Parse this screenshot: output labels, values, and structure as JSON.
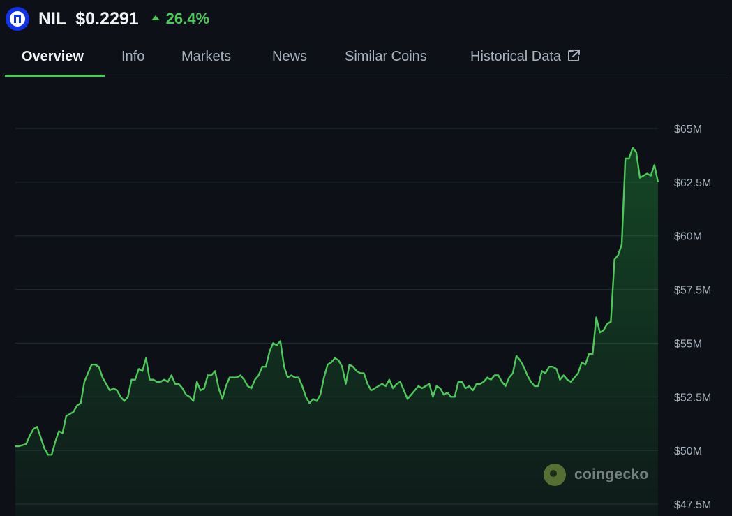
{
  "coin": {
    "symbol": "NIL",
    "price": "$0.2291",
    "change": "26.4%",
    "change_direction": "up",
    "logo_icon": "nil-logo-icon",
    "accent_color": "#4cc95a",
    "logo_color": "#1133e8"
  },
  "tabs": [
    {
      "label": "Overview",
      "active": true
    },
    {
      "label": "Info"
    },
    {
      "label": "Markets"
    },
    {
      "label": "News"
    },
    {
      "label": "Similar Coins"
    },
    {
      "label": "Historical Data",
      "icon": "external-link-icon"
    }
  ],
  "watermark": {
    "text": "coingecko",
    "icon": "coingecko-logo-icon"
  },
  "chart_data": {
    "type": "area",
    "y_tick_labels": [
      "$65M",
      "$62.5M",
      "$60M",
      "$57.5M",
      "$55M",
      "$52.5M",
      "$50M",
      "$47.5M"
    ],
    "y_ticks": [
      65,
      62.5,
      60,
      57.5,
      55,
      52.5,
      50,
      47.5
    ],
    "ylim": [
      47.5,
      65
    ],
    "y_unit": "millions USD",
    "grid": true,
    "legend": "none",
    "line_color": "#4cc95a",
    "series": [
      {
        "values": [
          50.2,
          50.2,
          50.25,
          50.3,
          50.7,
          51.0,
          51.1,
          50.6,
          50.1,
          49.8,
          49.8,
          50.4,
          50.9,
          50.8,
          51.6,
          51.7,
          51.8,
          52.1,
          52.2,
          53.2,
          53.6,
          54.0,
          54.0,
          53.9,
          53.4,
          53.1,
          52.8,
          52.9,
          52.8,
          52.5,
          52.3,
          52.5,
          53.3,
          53.3,
          53.8,
          53.7,
          54.3,
          53.3,
          53.3,
          53.2,
          53.2,
          53.3,
          53.2,
          53.5,
          53.1,
          53.1,
          52.9,
          52.6,
          52.5,
          52.3,
          53.2,
          52.8,
          52.9,
          53.5,
          53.5,
          53.7,
          52.9,
          52.4,
          53.0,
          53.4,
          53.4,
          53.4,
          53.5,
          53.3,
          53.0,
          52.9,
          53.3,
          53.5,
          53.9,
          53.9,
          54.6,
          55.0,
          54.9,
          55.1,
          53.9,
          53.4,
          53.5,
          53.4,
          53.4,
          53.0,
          52.5,
          52.2,
          52.4,
          52.3,
          52.6,
          53.4,
          54.0,
          54.1,
          54.3,
          54.2,
          53.9,
          53.1,
          54.0,
          53.9,
          53.7,
          53.6,
          53.6,
          53.1,
          52.8,
          52.9,
          53.0,
          53.1,
          53.0,
          53.3,
          52.9,
          53.1,
          53.2,
          52.8,
          52.4,
          52.6,
          52.8,
          53.0,
          52.9,
          53.0,
          53.1,
          52.5,
          53.0,
          52.9,
          52.6,
          52.7,
          52.5,
          52.5,
          53.2,
          53.2,
          52.9,
          53.0,
          52.8,
          53.1,
          53.1,
          53.2,
          53.4,
          53.3,
          53.5,
          53.5,
          53.2,
          53.0,
          53.4,
          53.6,
          54.4,
          54.2,
          53.9,
          53.5,
          53.2,
          53.0,
          53.0,
          53.7,
          53.6,
          53.9,
          53.9,
          53.8,
          53.3,
          53.5,
          53.3,
          53.2,
          53.4,
          53.6,
          54.1,
          54.0,
          54.5,
          54.5,
          56.2,
          55.5,
          55.6,
          55.9,
          56.0,
          58.9,
          59.1,
          59.6,
          63.6,
          63.6,
          64.1,
          63.9,
          62.7,
          62.8,
          62.9,
          62.8,
          63.3,
          62.5
        ]
      }
    ]
  }
}
